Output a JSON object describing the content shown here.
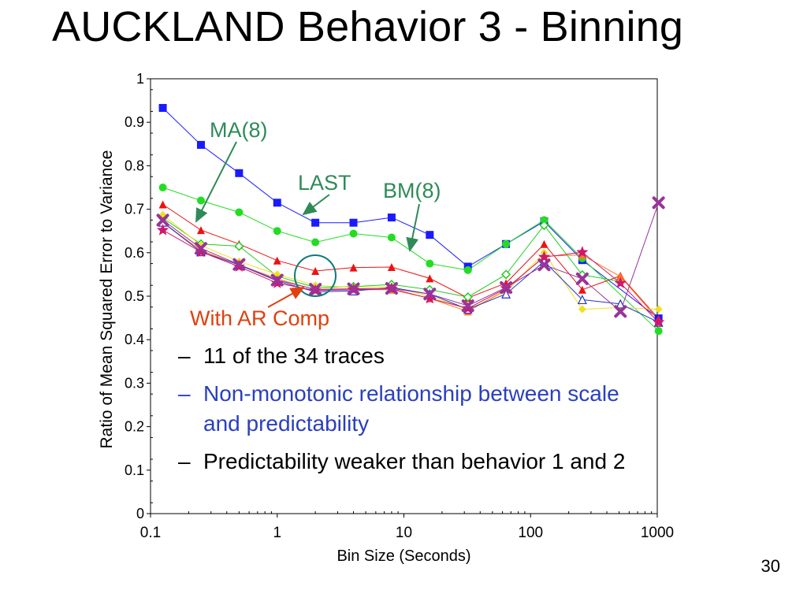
{
  "slide": {
    "title": "AUCKLAND Behavior 3 - Binning",
    "number": "30"
  },
  "bullets": [
    {
      "dash": "–",
      "text": "11 of the 34 traces",
      "color": "#000000"
    },
    {
      "dash": "–",
      "text": "Non-monotonic relationship between scale and predictability",
      "color": "#2a3fbf"
    },
    {
      "dash": "–",
      "text": "Predictability weaker than behavior 1 and 2",
      "color": "#000000"
    }
  ],
  "chart_data": {
    "type": "line",
    "title": "",
    "xlabel": "Bin Size (Seconds)",
    "ylabel": "Ratio of Mean Squared Error to Variance",
    "xscale": "log",
    "xlim": [
      0.1,
      1000
    ],
    "ylim": [
      0,
      1
    ],
    "xticks": [
      "0.1",
      "1",
      "10",
      "100",
      "1000"
    ],
    "yticks": [
      "0",
      "0.1",
      "0.2",
      "0.3",
      "0.4",
      "0.5",
      "0.6",
      "0.7",
      "0.8",
      "0.9",
      "1"
    ],
    "grid": false,
    "x": [
      0.125,
      0.25,
      0.5,
      1,
      2,
      4,
      8,
      16,
      32,
      64,
      128,
      256,
      512,
      1024
    ],
    "series": [
      {
        "color": "#1a1aff",
        "marker": "square",
        "values": [
          0.933,
          0.848,
          0.783,
          0.715,
          0.669,
          0.669,
          0.681,
          0.641,
          0.568,
          0.62,
          0.672,
          0.583,
          null,
          0.449
        ]
      },
      {
        "color": "#22dd22",
        "marker": "circle",
        "values": [
          0.75,
          0.72,
          0.693,
          0.65,
          0.624,
          0.644,
          0.635,
          0.575,
          0.56,
          0.62,
          0.675,
          0.587,
          null,
          0.42
        ]
      },
      {
        "color": "#ee1111",
        "marker": "triangle",
        "values": [
          0.711,
          0.652,
          0.62,
          0.582,
          0.558,
          0.566,
          0.567,
          0.541,
          0.496,
          0.53,
          0.62,
          0.515,
          0.547,
          0.448
        ]
      },
      {
        "color": "#22cc22",
        "marker": "diamond-open",
        "values": [
          0.68,
          0.62,
          0.615,
          0.546,
          0.52,
          0.522,
          0.527,
          0.515,
          0.498,
          0.55,
          0.663,
          0.549,
          0.534,
          null
        ]
      },
      {
        "color": "#f0e020",
        "marker": "diamond",
        "values": [
          0.687,
          0.617,
          0.58,
          0.55,
          0.525,
          0.52,
          0.522,
          0.5,
          0.47,
          0.51,
          0.6,
          0.47,
          0.474,
          0.47
        ]
      },
      {
        "color": "#ff7722",
        "marker": "triangle",
        "values": [
          0.67,
          0.605,
          0.572,
          0.54,
          0.515,
          0.515,
          0.515,
          0.495,
          0.465,
          0.515,
          0.592,
          0.595,
          0.545,
          0.445
        ]
      },
      {
        "color": "#2233cc",
        "marker": "triangle-open",
        "values": [
          0.67,
          0.602,
          0.572,
          0.535,
          0.51,
          0.512,
          0.52,
          0.505,
          0.47,
          0.505,
          0.58,
          0.492,
          0.482,
          0.44
        ]
      },
      {
        "color": "#d0186b",
        "marker": "star",
        "values": [
          0.652,
          0.602,
          0.568,
          0.53,
          0.513,
          0.515,
          0.517,
          0.495,
          0.472,
          0.518,
          0.59,
          0.601,
          0.53,
          0.44
        ]
      },
      {
        "color": "#993399",
        "marker": "x",
        "values": [
          0.675,
          0.61,
          0.573,
          0.537,
          0.516,
          0.517,
          0.518,
          0.505,
          0.478,
          0.52,
          0.572,
          0.54,
          0.465,
          0.715
        ]
      }
    ],
    "annotations": [
      {
        "text": "MA(8)",
        "color": "#2e8b57"
      },
      {
        "text": "LAST",
        "color": "#2e8b57"
      },
      {
        "text": "BM(8)",
        "color": "#2e8b57"
      },
      {
        "text": "With AR Comp",
        "color": "#e04010"
      }
    ]
  }
}
